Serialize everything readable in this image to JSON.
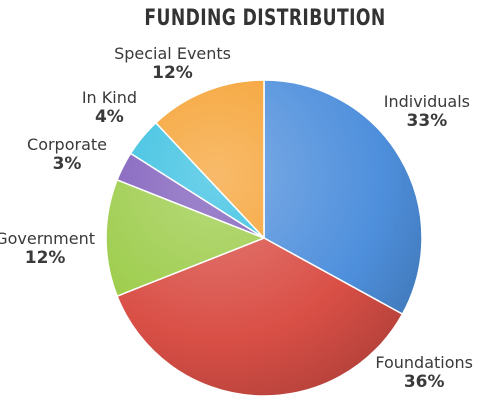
{
  "chart_data": {
    "type": "pie",
    "title": "FUNDING DISTRIBUTION",
    "slices": [
      {
        "label": "Individuals",
        "value": 33,
        "value_label": "33%",
        "color": "#4e8fdc"
      },
      {
        "label": "Foundations",
        "value": 36,
        "value_label": "36%",
        "color": "#d94f46"
      },
      {
        "label": "Government",
        "value": 12,
        "value_label": "12%",
        "color": "#9ccc4a"
      },
      {
        "label": "Corporate",
        "value": 3,
        "value_label": "3%",
        "color": "#7e5cbb"
      },
      {
        "label": "In Kind",
        "value": 4,
        "value_label": "4%",
        "color": "#36bfe0"
      },
      {
        "label": "Special Events",
        "value": 12,
        "value_label": "12%",
        "color": "#f5a030"
      }
    ],
    "start": "12 o'clock",
    "direction": "clockwise",
    "legend": "none",
    "labels": "outside"
  }
}
